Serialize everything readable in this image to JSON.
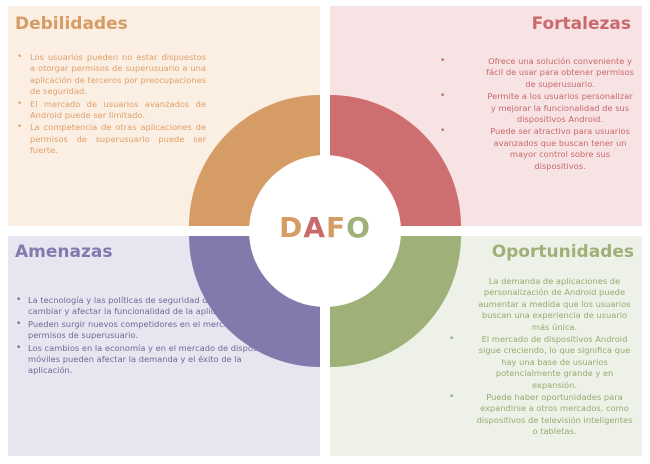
{
  "center": {
    "letters": [
      {
        "char": "D",
        "color": "#d69c66"
      },
      {
        "char": "A",
        "color": "#c96a6c"
      },
      {
        "char": "F",
        "color": "#d69c66"
      },
      {
        "char": "O",
        "color": "#9fb178"
      }
    ]
  },
  "colors": {
    "debilidades": "#d69c66",
    "fortalezas": "#cd6f70",
    "amenazas": "#807bac",
    "oportunidades": "#9fb178"
  },
  "debilidades": {
    "title": "Debilidades",
    "items": [
      "Los usuarios pueden no estar dispuestos a otorgar permisos de superusuario a una aplicación de terceros por preocupaciones de seguridad.",
      "El mercado de usuarios avanzados de Android puede ser limitado.",
      "La competencia de otras aplicaciones de permisos de superusuario puede ser fuerte."
    ]
  },
  "fortalezas": {
    "title": "Fortalezas",
    "items": [
      "Ofrece una solución conveniente y fácil de usar para obtener permisos de superusuario.",
      "Permite a los usuarios personalizar y mejorar la funcionalidad de sus dispositivos Android.",
      "Puede ser atractivo para usuarios avanzados que buscan tener un mayor control sobre sus dispositivos."
    ]
  },
  "amenazas": {
    "title": "Amenazas",
    "items": [
      "La tecnología y las políticas de seguridad de Android pueden cambiar y afectar la funcionalidad de la aplicación.",
      "Pueden surgir nuevos competidores en el mercado de permisos de superusuario.",
      "Los cambios en la economía y en el mercado de dispositivos móviles pueden afectar la demanda y el éxito de la aplicación."
    ]
  },
  "oportunidades": {
    "title": "Oportunidades",
    "items": [
      "La demanda de aplicaciones de personalización de Android puede aumentar a medida que los usuarios buscan una experiencia de usuario más única.",
      "El mercado de dispositivos Android sigue creciendo, lo que significa que hay una base de usuarios potencialmente grande y en expansión.",
      "Puede haber oportunidades para expandirse a otros mercados, como dispositivos de televisión inteligentes o tabletas."
    ]
  }
}
